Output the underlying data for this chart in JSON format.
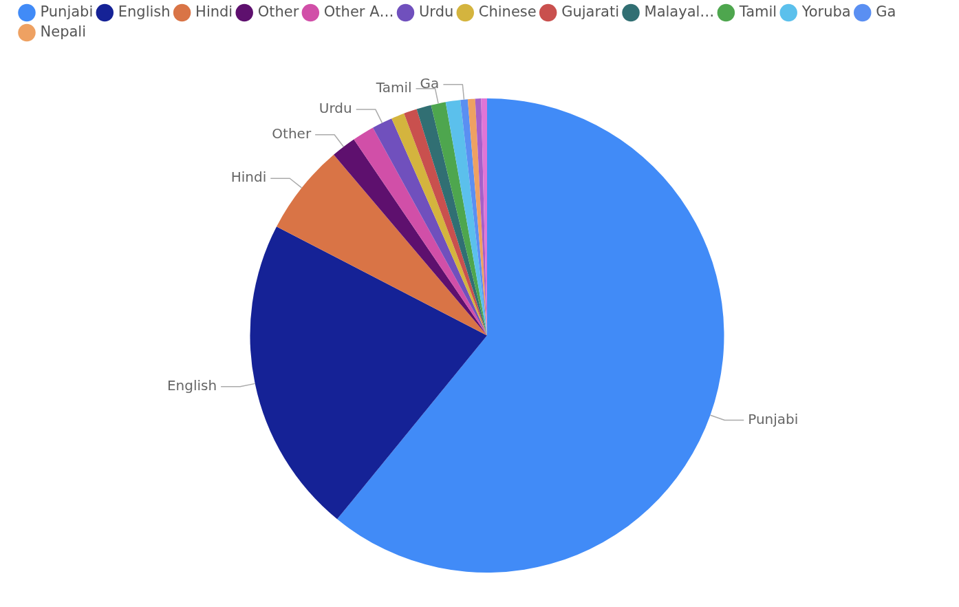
{
  "chart_data": {
    "type": "pie",
    "categories": [
      "Punjabi",
      "English",
      "Hindi",
      "Other",
      "Other A…",
      "Urdu",
      "Chinese",
      "Gujarati",
      "Malayal…",
      "Tamil",
      "Yoruba",
      "Ga",
      "Nepali",
      null,
      null
    ],
    "values": [
      60.9,
      21.7,
      6.2,
      1.7,
      1.5,
      1.4,
      0.9,
      0.9,
      1.0,
      1.0,
      1.0,
      0.5,
      0.5,
      0.4,
      0.4
    ],
    "colors": [
      "#418bf7",
      "#152296",
      "#d97446",
      "#5e106e",
      "#d14fa8",
      "#7050bd",
      "#d4b43e",
      "#c9504e",
      "#316f73",
      "#4ea64e",
      "#5bc0ec",
      "#5a8ff2",
      "#eea162",
      "#a660c9",
      "#e075d6"
    ],
    "legend": "top left",
    "annotations": [
      {
        "text": "Punjabi",
        "x": "Punjabi"
      },
      {
        "text": "English",
        "x": "English"
      },
      {
        "text": "Hindi",
        "x": "Hindi"
      },
      {
        "text": "Other",
        "x": "Other"
      },
      {
        "text": "Urdu",
        "x": "Urdu"
      },
      {
        "text": "Tamil",
        "x": "Tamil"
      },
      {
        "text": "Ga",
        "x": "Ga"
      }
    ]
  }
}
